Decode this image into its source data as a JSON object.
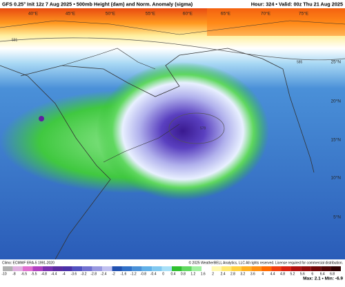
{
  "header": {
    "title": "GFS 0.25° Init 12z 7 Aug 2025 • 500mb Height (dam) and Norm. Anomaly (sigma)",
    "valid": "Hour: 324 • Valid: 00z Thu 21 Aug 2025"
  },
  "map": {
    "lon_labels": [
      "40°E",
      "45°E",
      "50°E",
      "55°E",
      "60°E",
      "65°E",
      "70°E",
      "75°E"
    ],
    "lat_labels": [
      "25°N",
      "20°N",
      "15°N",
      "10°N",
      "5°N"
    ],
    "contour_labels": [
      "591",
      "585",
      "579"
    ]
  },
  "colorbar": {
    "labels": [
      "-10",
      "-8",
      "-6.5",
      "-5.5",
      "-4.8",
      "-4.4",
      "-4",
      "-3.6",
      "-3.2",
      "-2.8",
      "-2.4",
      "-2",
      "-1.6",
      "-1.2",
      "-0.8",
      "-0.4",
      "0",
      "0.4",
      "0.8",
      "1.2",
      "1.6",
      "2",
      "2.4",
      "2.8",
      "3.2",
      "3.6",
      "4",
      "4.4",
      "4.8",
      "5.2",
      "5.6",
      "6",
      "6.4",
      "6.8"
    ],
    "colors": [
      "#b0b0b0",
      "#e0b0e0",
      "#e070d0",
      "#b040c0",
      "#7a30b0",
      "#5a2aa0",
      "#4a30a8",
      "#5050c0",
      "#7070d0",
      "#9898e0",
      "#c0c0f0",
      "#2050b0",
      "#3070c8",
      "#4890d8",
      "#60b0e8",
      "#80c8f0",
      "#a8e0f8",
      "#30c030",
      "#60d860",
      "#a0f0a0",
      "#ffffff",
      "#fff8b0",
      "#ffe870",
      "#ffd040",
      "#ffb020",
      "#ff9010",
      "#ff6a00",
      "#f04010",
      "#d82010",
      "#b01010",
      "#900c0c",
      "#700808",
      "#500505",
      "#300303"
    ]
  },
  "footer": {
    "climo": "Climo: ECMWF ERA-5 1991-2020",
    "copyright": "© 2025 WeatherBELL Analytics, LLC All rights reserved. License required for commercial distribution.",
    "maxmin": "Max: 2.1 • Min: -6.9"
  }
}
